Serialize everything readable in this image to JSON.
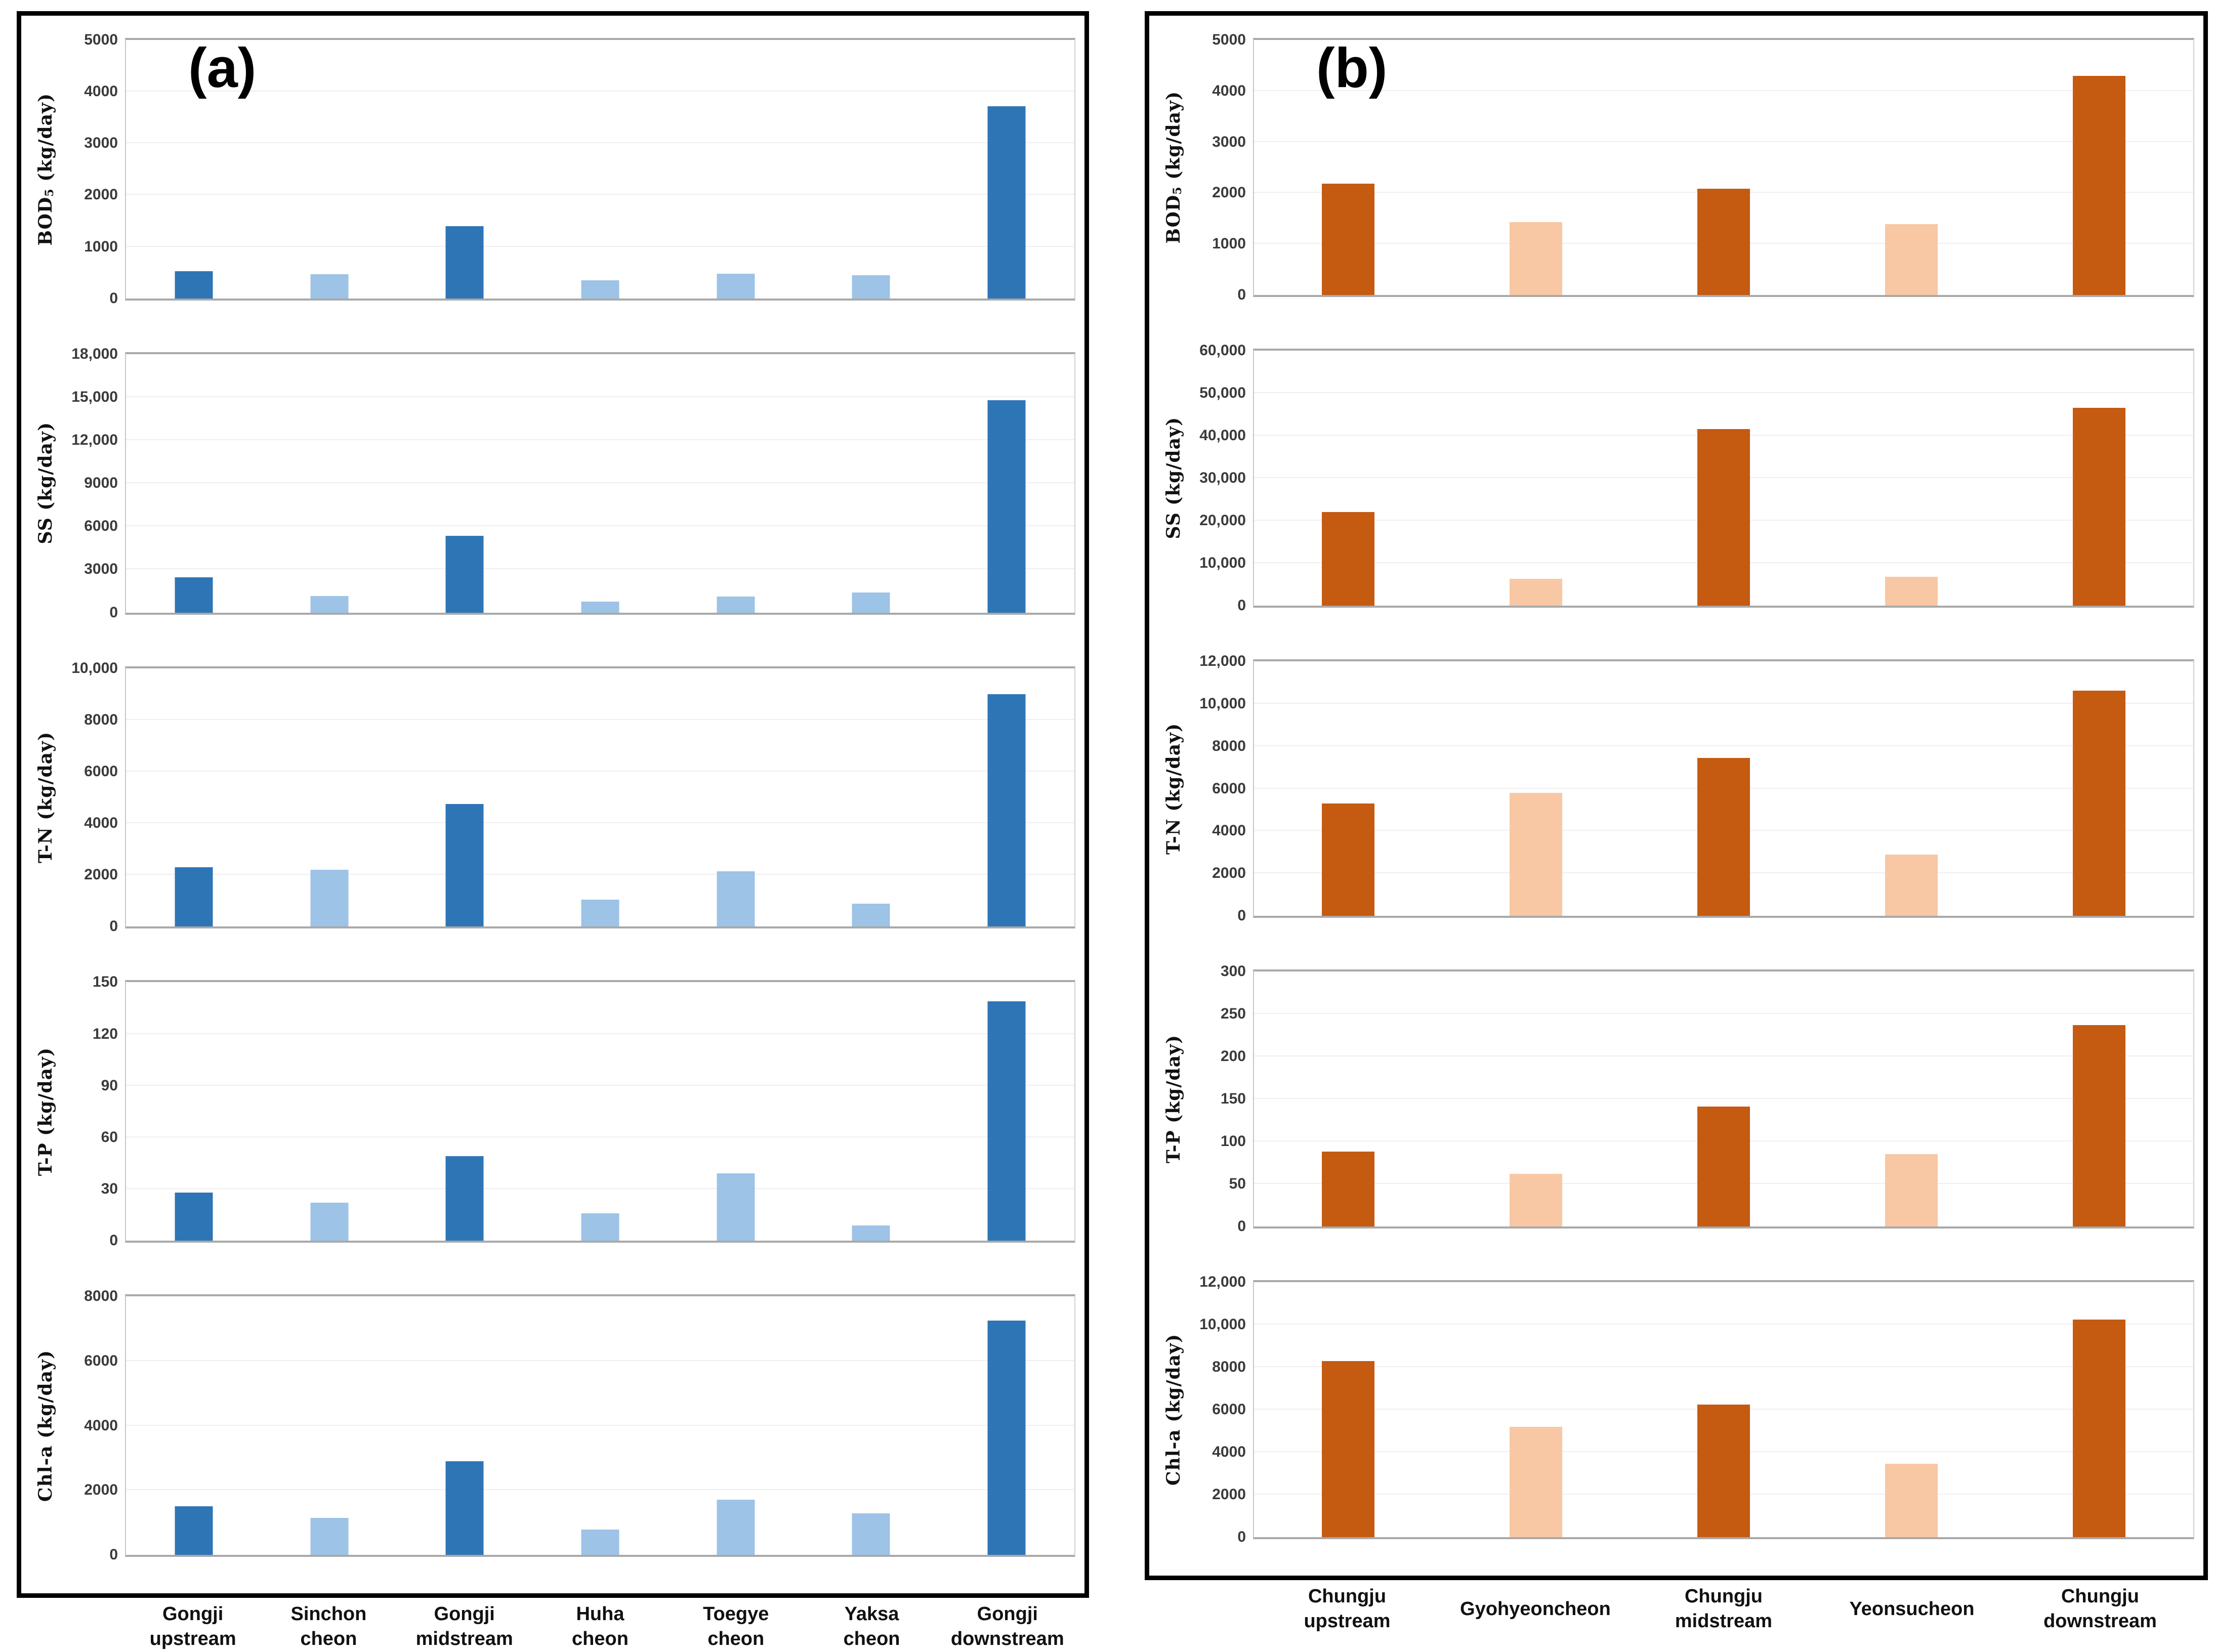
{
  "chart_data": {
    "type": "bar",
    "title": "",
    "panels": [
      {
        "id": "a",
        "label": "(a)",
        "bar_colors": {
          "dark": "#2E75B6",
          "light": "#9DC3E6"
        },
        "pattern": [
          "dark",
          "light",
          "dark",
          "light",
          "light",
          "light",
          "dark"
        ],
        "categories": [
          "Gongji\nupstream",
          "Sinchon\ncheon",
          "Gongji\nmidstream",
          "Huha\ncheon",
          "Toegye\ncheon",
          "Yaksa\ncheon",
          "Gongji\ndownstream"
        ],
        "charts": [
          {
            "key": "bod5",
            "ylabel": {
              "text": "BOD",
              "sub": "5",
              "unit": " (kg/day)"
            },
            "ymax": 5000,
            "tick_labels": [
              "0",
              "1000",
              "2000",
              "3000",
              "4000",
              "5000"
            ],
            "values": [
              530,
              470,
              1400,
              350,
              480,
              450,
              3720
            ]
          },
          {
            "key": "ss",
            "ylabel": {
              "text": "SS",
              "sub": "",
              "unit": " (kg/day)"
            },
            "ymax": 18000,
            "tick_labels": [
              "0",
              "3000",
              "6000",
              "9000",
              "12,000",
              "15,000",
              "18,000"
            ],
            "values": [
              2450,
              1150,
              5350,
              750,
              1100,
              1400,
              14800
            ]
          },
          {
            "key": "tn",
            "ylabel": {
              "text": "T-N",
              "sub": "",
              "unit": " (kg/day)"
            },
            "ymax": 10000,
            "tick_labels": [
              "0",
              "2000",
              "4000",
              "6000",
              "8000",
              "10,000"
            ],
            "values": [
              2300,
              2200,
              4750,
              1050,
              2150,
              880,
              9000
            ]
          },
          {
            "key": "tp",
            "ylabel": {
              "text": "T-P",
              "sub": "",
              "unit": " (kg/day)"
            },
            "ymax": 150,
            "tick_labels": [
              "0",
              "30",
              "60",
              "90",
              "120",
              "150"
            ],
            "values": [
              28,
              22,
              49,
              16,
              39,
              9,
              139
            ]
          },
          {
            "key": "chla",
            "ylabel": {
              "text": "Chl-a",
              "sub": "",
              "unit": " (kg/day)"
            },
            "ymax": 8000,
            "tick_labels": [
              "0",
              "2000",
              "4000",
              "6000",
              "8000"
            ],
            "values": [
              1500,
              1150,
              2900,
              780,
              1700,
              1280,
              7250
            ]
          }
        ]
      },
      {
        "id": "b",
        "label": "(b)",
        "bar_colors": {
          "dark": "#C55A11",
          "light": "#F8C7A3"
        },
        "pattern": [
          "dark",
          "light",
          "dark",
          "light",
          "dark"
        ],
        "categories": [
          "Chungju\nupstream",
          "Gyohyeoncheon",
          "Chungju\nmidstream",
          "Yeonsucheon",
          "Chungju\ndownstream"
        ],
        "charts": [
          {
            "key": "bod5",
            "ylabel": {
              "text": "BOD",
              "sub": "5",
              "unit": " (kg/day)"
            },
            "ymax": 5000,
            "tick_labels": [
              "0",
              "1000",
              "2000",
              "3000",
              "4000",
              "5000"
            ],
            "values": [
              2180,
              1430,
              2080,
              1390,
              4300
            ]
          },
          {
            "key": "ss",
            "ylabel": {
              "text": "SS",
              "sub": "",
              "unit": " (kg/day)"
            },
            "ymax": 60000,
            "tick_labels": [
              "0",
              "10,000",
              "20,000",
              "30,000",
              "40,000",
              "50,000",
              "60,000"
            ],
            "values": [
              22000,
              6300,
              41500,
              6800,
              46500
            ]
          },
          {
            "key": "tn",
            "ylabel": {
              "text": "T-N",
              "sub": "",
              "unit": " (kg/day)"
            },
            "ymax": 12000,
            "tick_labels": [
              "0",
              "2000",
              "4000",
              "6000",
              "8000",
              "10,000",
              "12,000"
            ],
            "values": [
              5300,
              5800,
              7450,
              2900,
              10600
            ]
          },
          {
            "key": "tp",
            "ylabel": {
              "text": "T-P",
              "sub": "",
              "unit": " (kg/day)"
            },
            "ymax": 300,
            "tick_labels": [
              "0",
              "50",
              "100",
              "150",
              "200",
              "250",
              "300"
            ],
            "values": [
              88,
              62,
              141,
              85,
              237
            ]
          },
          {
            "key": "chla",
            "ylabel": {
              "text": "Chl-a",
              "sub": "",
              "unit": " (kg/day)"
            },
            "ymax": 12000,
            "tick_labels": [
              "0",
              "2000",
              "4000",
              "6000",
              "8000",
              "10,000",
              "12,000"
            ],
            "values": [
              8300,
              5200,
              6250,
              3450,
              10250
            ]
          }
        ]
      }
    ]
  }
}
